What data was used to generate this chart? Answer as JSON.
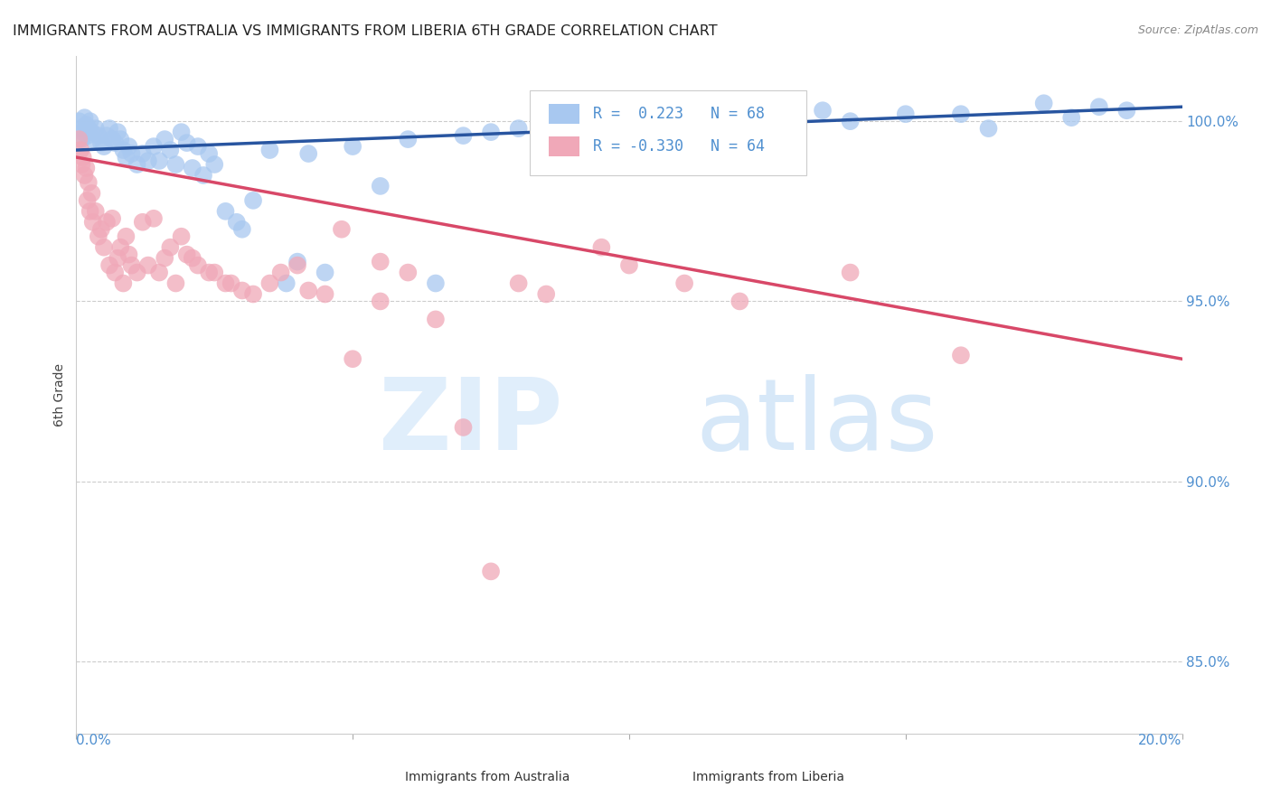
{
  "title": "IMMIGRANTS FROM AUSTRALIA VS IMMIGRANTS FROM LIBERIA 6TH GRADE CORRELATION CHART",
  "source": "Source: ZipAtlas.com",
  "ylabel": "6th Grade",
  "xlim": [
    0.0,
    20.0
  ],
  "ylim": [
    83.0,
    101.8
  ],
  "y_ticks": [
    85.0,
    90.0,
    95.0,
    100.0
  ],
  "y_tick_labels": [
    "85.0%",
    "90.0%",
    "95.0%",
    "100.0%"
  ],
  "legend_r_australia": "0.223",
  "legend_n_australia": "68",
  "legend_r_liberia": "-0.330",
  "legend_n_liberia": "64",
  "color_australia": "#A8C8F0",
  "color_liberia": "#F0A8B8",
  "color_line_australia": "#2855A0",
  "color_line_liberia": "#D84868",
  "color_axis_right": "#5090D0",
  "color_grid": "#CCCCCC",
  "aus_line_x0": 0.0,
  "aus_line_x1": 20.0,
  "aus_line_y0": 99.2,
  "aus_line_y1": 100.4,
  "lib_line_x0": 0.0,
  "lib_line_x1": 20.0,
  "lib_line_y0": 99.0,
  "lib_line_y1": 93.4,
  "australia_x": [
    0.05,
    0.08,
    0.1,
    0.12,
    0.15,
    0.18,
    0.2,
    0.22,
    0.25,
    0.28,
    0.3,
    0.35,
    0.4,
    0.45,
    0.5,
    0.55,
    0.6,
    0.65,
    0.7,
    0.75,
    0.8,
    0.85,
    0.9,
    0.95,
    1.0,
    1.1,
    1.2,
    1.3,
    1.4,
    1.5,
    1.6,
    1.7,
    1.8,
    1.9,
    2.0,
    2.1,
    2.2,
    2.3,
    2.4,
    2.5,
    2.7,
    2.9,
    3.0,
    3.2,
    3.5,
    3.8,
    4.0,
    4.2,
    4.5,
    5.0,
    5.5,
    6.0,
    6.5,
    7.0,
    7.5,
    8.0,
    9.0,
    10.0,
    12.0,
    13.5,
    15.0,
    16.5,
    17.5,
    18.5,
    14.0,
    16.0,
    18.0,
    19.0
  ],
  "australia_y": [
    100.0,
    99.8,
    99.5,
    99.7,
    100.1,
    99.9,
    99.6,
    99.8,
    100.0,
    99.7,
    99.5,
    99.8,
    99.6,
    99.4,
    99.3,
    99.6,
    99.8,
    99.5,
    99.4,
    99.7,
    99.5,
    99.2,
    99.0,
    99.3,
    99.1,
    98.8,
    99.1,
    98.9,
    99.3,
    98.9,
    99.5,
    99.2,
    98.8,
    99.7,
    99.4,
    98.7,
    99.3,
    98.5,
    99.1,
    98.8,
    97.5,
    97.2,
    97.0,
    97.8,
    99.2,
    95.5,
    96.1,
    99.1,
    95.8,
    99.3,
    98.2,
    99.5,
    95.5,
    99.6,
    99.7,
    99.8,
    99.9,
    100.1,
    100.0,
    100.3,
    100.2,
    99.8,
    100.5,
    100.4,
    100.0,
    100.2,
    100.1,
    100.3
  ],
  "liberia_x": [
    0.05,
    0.08,
    0.1,
    0.12,
    0.15,
    0.18,
    0.2,
    0.22,
    0.25,
    0.28,
    0.3,
    0.35,
    0.4,
    0.45,
    0.5,
    0.55,
    0.6,
    0.65,
    0.7,
    0.75,
    0.8,
    0.85,
    0.9,
    0.95,
    1.0,
    1.1,
    1.2,
    1.3,
    1.4,
    1.5,
    1.6,
    1.7,
    1.8,
    1.9,
    2.0,
    2.2,
    2.5,
    2.8,
    3.0,
    3.5,
    4.0,
    4.5,
    5.0,
    5.5,
    6.0,
    7.0,
    8.0,
    9.5,
    2.1,
    2.4,
    2.7,
    3.2,
    3.7,
    4.2,
    4.8,
    5.5,
    6.5,
    7.5,
    8.5,
    10.0,
    11.0,
    12.0,
    14.0,
    16.0
  ],
  "liberia_y": [
    99.5,
    99.2,
    98.8,
    99.0,
    98.5,
    98.7,
    97.8,
    98.3,
    97.5,
    98.0,
    97.2,
    97.5,
    96.8,
    97.0,
    96.5,
    97.2,
    96.0,
    97.3,
    95.8,
    96.2,
    96.5,
    95.5,
    96.8,
    96.3,
    96.0,
    95.8,
    97.2,
    96.0,
    97.3,
    95.8,
    96.2,
    96.5,
    95.5,
    96.8,
    96.3,
    96.0,
    95.8,
    95.5,
    95.3,
    95.5,
    96.0,
    95.2,
    93.4,
    96.1,
    95.8,
    91.5,
    95.5,
    96.5,
    96.2,
    95.8,
    95.5,
    95.2,
    95.8,
    95.3,
    97.0,
    95.0,
    94.5,
    87.5,
    95.2,
    96.0,
    95.5,
    95.0,
    95.8,
    93.5
  ]
}
